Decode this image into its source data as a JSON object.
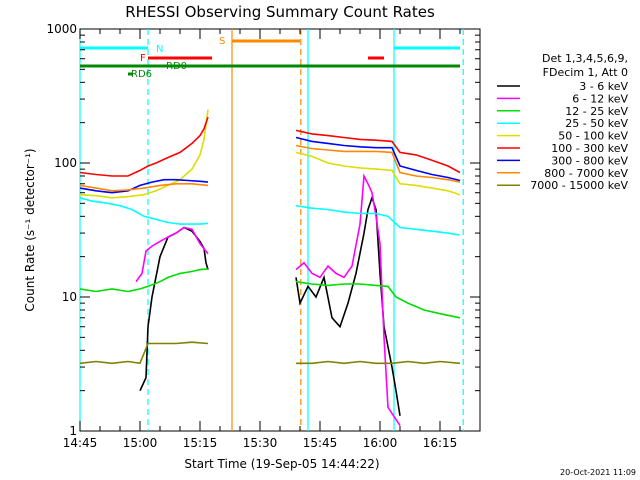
{
  "chart_data": {
    "type": "line",
    "title": "RHESSI Observing Summary Count Rates",
    "xlabel": "Start Time (19-Sep-05 14:44:22)",
    "ylabel": "Count Rate (s⁻¹ detector⁻¹)",
    "yscale": "log",
    "ylim": [
      1,
      1000
    ],
    "xlim_min": [
      0,
      100
    ],
    "yticks": [
      {
        "v": 1,
        "label": "1"
      },
      {
        "v": 10,
        "label": "10"
      },
      {
        "v": 100,
        "label": "100"
      },
      {
        "v": 1000,
        "label": "1000"
      }
    ],
    "xticks": [
      {
        "t": 0,
        "label": "14:45"
      },
      {
        "t": 15,
        "label": "15:00"
      },
      {
        "t": 30,
        "label": "15:15"
      },
      {
        "t": 45,
        "label": "15:30"
      },
      {
        "t": 60,
        "label": "15:45"
      },
      {
        "t": 75,
        "label": "16:00"
      },
      {
        "t": 90,
        "label": "16:15"
      }
    ],
    "legend_header": [
      "Det 1,3,4,5,6,9,",
      "FDecim 1, Att 0"
    ],
    "series": [
      {
        "name": "3 - 6 keV",
        "color": "#ffffff",
        "points": [
          [
            15,
            2
          ],
          [
            16.5,
            2.5
          ],
          [
            17,
            6
          ],
          [
            18,
            10
          ],
          [
            20,
            20
          ],
          [
            22,
            28
          ],
          [
            24,
            30
          ],
          [
            26,
            33
          ],
          [
            28,
            31
          ],
          [
            30,
            26
          ],
          [
            31,
            23
          ],
          [
            31.5,
            18
          ],
          [
            32,
            16
          ],
          [
            54,
            14
          ],
          [
            55,
            9
          ],
          [
            57,
            12
          ],
          [
            59,
            10
          ],
          [
            61,
            14
          ],
          [
            63,
            7
          ],
          [
            65,
            6
          ],
          [
            67,
            9
          ],
          [
            69,
            15
          ],
          [
            71,
            30
          ],
          [
            72,
            45
          ],
          [
            73,
            55
          ],
          [
            74,
            45
          ],
          [
            75,
            15
          ],
          [
            76,
            6
          ],
          [
            78,
            3
          ],
          [
            79,
            2
          ],
          [
            80,
            1.3
          ]
        ]
      },
      {
        "name": "6 - 12 keV",
        "color": "#ff00ff",
        "points": [
          [
            14,
            13
          ],
          [
            15.5,
            15
          ],
          [
            16.5,
            22
          ],
          [
            18,
            24
          ],
          [
            20,
            26
          ],
          [
            22,
            28
          ],
          [
            24,
            30
          ],
          [
            26,
            33
          ],
          [
            28,
            32
          ],
          [
            30,
            25
          ],
          [
            32,
            21
          ],
          [
            54,
            16
          ],
          [
            56,
            18
          ],
          [
            58,
            15
          ],
          [
            60,
            14
          ],
          [
            62,
            17
          ],
          [
            64,
            15
          ],
          [
            66,
            14
          ],
          [
            68,
            17
          ],
          [
            70,
            35
          ],
          [
            71,
            80
          ],
          [
            72,
            70
          ],
          [
            73,
            60
          ],
          [
            74,
            40
          ],
          [
            75,
            25
          ],
          [
            76,
            5
          ],
          [
            77,
            1.5
          ],
          [
            80,
            1.1
          ]
        ]
      },
      {
        "name": "12 - 25 keV",
        "color": "#00dd00",
        "points": [
          [
            0,
            11.5
          ],
          [
            4,
            11
          ],
          [
            8,
            11.5
          ],
          [
            12,
            11
          ],
          [
            15,
            11.5
          ],
          [
            17,
            12
          ],
          [
            20,
            13
          ],
          [
            22,
            14
          ],
          [
            25,
            15
          ],
          [
            28,
            15.5
          ],
          [
            30,
            16
          ],
          [
            32,
            16.2
          ],
          [
            54,
            13
          ],
          [
            58,
            12.5
          ],
          [
            62,
            12.2
          ],
          [
            66,
            12.5
          ],
          [
            70,
            12.5
          ],
          [
            74,
            12.2
          ],
          [
            77,
            12
          ],
          [
            79,
            10
          ],
          [
            82,
            9
          ],
          [
            86,
            8
          ],
          [
            90,
            7.5
          ],
          [
            95,
            7
          ]
        ]
      },
      {
        "name": "25 - 50 keV",
        "color": "#00ffff",
        "points": [
          [
            0,
            55
          ],
          [
            3,
            52
          ],
          [
            7,
            50
          ],
          [
            10,
            48
          ],
          [
            13,
            45
          ],
          [
            16,
            40
          ],
          [
            19,
            38
          ],
          [
            22,
            36
          ],
          [
            25,
            35
          ],
          [
            28,
            35
          ],
          [
            30,
            35
          ],
          [
            32,
            35.5
          ],
          [
            54,
            48
          ],
          [
            58,
            46
          ],
          [
            62,
            45
          ],
          [
            66,
            43
          ],
          [
            70,
            42
          ],
          [
            74,
            42
          ],
          [
            77,
            40
          ],
          [
            80,
            33
          ],
          [
            84,
            32
          ],
          [
            88,
            31
          ],
          [
            92,
            30
          ],
          [
            95,
            29
          ]
        ]
      },
      {
        "name": "50 - 100 keV",
        "color": "#dddd00",
        "points": [
          [
            0,
            58
          ],
          [
            4,
            57
          ],
          [
            8,
            55
          ],
          [
            12,
            56
          ],
          [
            16,
            58
          ],
          [
            19,
            62
          ],
          [
            22,
            68
          ],
          [
            25,
            75
          ],
          [
            28,
            90
          ],
          [
            30,
            115
          ],
          [
            31,
            150
          ],
          [
            32,
            250
          ],
          [
            54,
            120
          ],
          [
            58,
            112
          ],
          [
            62,
            100
          ],
          [
            66,
            95
          ],
          [
            70,
            92
          ],
          [
            74,
            90
          ],
          [
            78,
            88
          ],
          [
            80,
            70
          ],
          [
            84,
            68
          ],
          [
            88,
            65
          ],
          [
            92,
            62
          ],
          [
            95,
            58
          ]
        ]
      },
      {
        "name": "100 - 300 keV",
        "color": "#ff0000",
        "points": [
          [
            0,
            85
          ],
          [
            4,
            82
          ],
          [
            8,
            80
          ],
          [
            12,
            80
          ],
          [
            15,
            88
          ],
          [
            17,
            95
          ],
          [
            19,
            100
          ],
          [
            22,
            110
          ],
          [
            25,
            120
          ],
          [
            28,
            140
          ],
          [
            30,
            160
          ],
          [
            31,
            180
          ],
          [
            32,
            220
          ],
          [
            54,
            175
          ],
          [
            58,
            165
          ],
          [
            62,
            160
          ],
          [
            66,
            155
          ],
          [
            70,
            150
          ],
          [
            74,
            148
          ],
          [
            78,
            145
          ],
          [
            80,
            120
          ],
          [
            84,
            115
          ],
          [
            88,
            105
          ],
          [
            92,
            95
          ],
          [
            95,
            85
          ]
        ]
      },
      {
        "name": "300 - 800 keV",
        "color": "#0000ff",
        "points": [
          [
            0,
            65
          ],
          [
            4,
            62
          ],
          [
            8,
            60
          ],
          [
            12,
            62
          ],
          [
            15,
            68
          ],
          [
            18,
            72
          ],
          [
            21,
            75
          ],
          [
            24,
            75
          ],
          [
            27,
            74
          ],
          [
            30,
            73
          ],
          [
            32,
            72
          ],
          [
            54,
            155
          ],
          [
            58,
            145
          ],
          [
            62,
            140
          ],
          [
            66,
            135
          ],
          [
            70,
            132
          ],
          [
            74,
            130
          ],
          [
            78,
            130
          ],
          [
            80,
            95
          ],
          [
            84,
            88
          ],
          [
            88,
            82
          ],
          [
            92,
            78
          ],
          [
            95,
            74
          ]
        ]
      },
      {
        "name": "800 - 7000 keV",
        "color": "#ff8800",
        "points": [
          [
            0,
            68
          ],
          [
            4,
            65
          ],
          [
            8,
            62
          ],
          [
            12,
            63
          ],
          [
            16,
            65
          ],
          [
            20,
            68
          ],
          [
            24,
            70
          ],
          [
            28,
            70
          ],
          [
            32,
            68
          ],
          [
            54,
            135
          ],
          [
            58,
            128
          ],
          [
            62,
            125
          ],
          [
            66,
            122
          ],
          [
            70,
            122
          ],
          [
            74,
            122
          ],
          [
            78,
            120
          ],
          [
            80,
            85
          ],
          [
            84,
            80
          ],
          [
            88,
            78
          ],
          [
            92,
            75
          ],
          [
            95,
            72
          ]
        ]
      },
      {
        "name": "7000 - 15000 keV",
        "color": "#808000",
        "points": [
          [
            0,
            3.2
          ],
          [
            4,
            3.3
          ],
          [
            8,
            3.2
          ],
          [
            12,
            3.3
          ],
          [
            15,
            3.2
          ],
          [
            17,
            4.5
          ],
          [
            20,
            4.5
          ],
          [
            24,
            4.5
          ],
          [
            28,
            4.6
          ],
          [
            32,
            4.5
          ],
          [
            54,
            3.2
          ],
          [
            58,
            3.2
          ],
          [
            62,
            3.3
          ],
          [
            66,
            3.2
          ],
          [
            70,
            3.3
          ],
          [
            74,
            3.2
          ],
          [
            78,
            3.2
          ],
          [
            82,
            3.3
          ],
          [
            86,
            3.2
          ],
          [
            90,
            3.3
          ],
          [
            95,
            3.2
          ]
        ]
      }
    ],
    "overlays": {
      "N": {
        "label": "N",
        "color": "#00ffff",
        "segments": [
          [
            0,
            17
          ],
          [
            78.5,
            95
          ]
        ]
      },
      "F": {
        "label": "F",
        "color": "#ff0000",
        "segments": [
          [
            17,
            33
          ],
          [
            72,
            76
          ]
        ]
      },
      "S": {
        "label": "S",
        "color": "#ff8800",
        "segments": [
          [
            38,
            55
          ]
        ]
      },
      "RD0": {
        "label": "RD0",
        "color": "#008800",
        "segments": [
          [
            0,
            95
          ]
        ]
      },
      "RD6": {
        "label": "RD6",
        "color": "#008800",
        "segments": [
          [
            12,
            13
          ]
        ]
      }
    },
    "vlines": [
      {
        "t": 0,
        "color": "#00ffff",
        "style": "solid"
      },
      {
        "t": 17,
        "color": "#00ffff",
        "style": "dashed"
      },
      {
        "t": 38,
        "color": "#ff8800",
        "style": "solid"
      },
      {
        "t": 55.2,
        "color": "#ff8800",
        "style": "dashed"
      },
      {
        "t": 57,
        "color": "#00ffff",
        "style": "solid"
      },
      {
        "t": 78.5,
        "color": "#00ffff",
        "style": "solid"
      },
      {
        "t": 95.8,
        "color": "#00ffff",
        "style": "dashed"
      }
    ],
    "timestamp": "20-Oct-2021 11:09"
  }
}
